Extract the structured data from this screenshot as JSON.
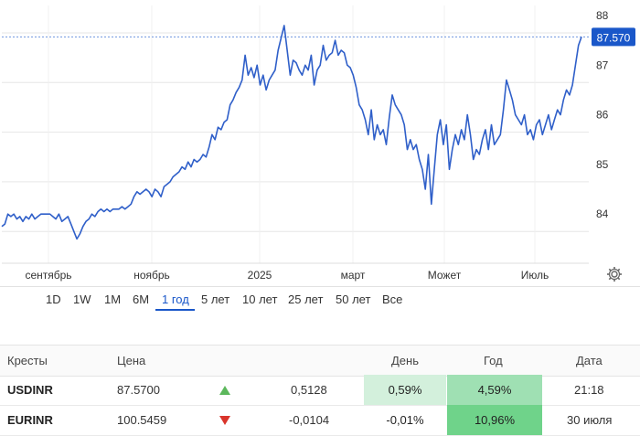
{
  "chart_data": {
    "type": "line",
    "x_labels": [
      "сентябрь",
      "ноябрь",
      "2025",
      "март",
      "Может",
      "Июль"
    ],
    "y_ticks": [
      84,
      85,
      86,
      87,
      88
    ],
    "ylim": [
      83.2,
      88.1
    ],
    "current_value": 87.57,
    "current_label": "87.570",
    "series": [
      {
        "values": [
          83.75,
          83.8,
          84.0,
          83.95,
          84.0,
          83.9,
          83.95,
          83.85,
          83.95,
          83.9,
          84.0,
          83.9,
          83.95,
          84.0,
          84.0,
          84.0,
          84.0,
          83.95,
          83.9,
          84.0,
          83.85,
          83.9,
          83.95,
          83.8,
          83.65,
          83.5,
          83.6,
          83.75,
          83.85,
          83.9,
          84.0,
          83.95,
          84.05,
          84.1,
          84.05,
          84.1,
          84.05,
          84.1,
          84.1,
          84.1,
          84.15,
          84.1,
          84.15,
          84.2,
          84.35,
          84.45,
          84.4,
          84.45,
          84.5,
          84.45,
          84.35,
          84.5,
          84.45,
          84.35,
          84.55,
          84.6,
          84.65,
          84.75,
          84.8,
          84.85,
          84.95,
          84.9,
          85.05,
          84.95,
          85.1,
          85.05,
          85.1,
          85.2,
          85.15,
          85.35,
          85.6,
          85.5,
          85.75,
          85.7,
          85.85,
          85.9,
          86.2,
          86.3,
          86.45,
          86.55,
          86.7,
          87.2,
          86.8,
          86.95,
          86.75,
          87.0,
          86.6,
          86.8,
          86.5,
          86.7,
          86.8,
          86.9,
          87.3,
          87.55,
          87.8,
          87.3,
          86.8,
          87.1,
          87.05,
          86.9,
          86.8,
          87.0,
          86.9,
          87.2,
          86.6,
          86.9,
          87.0,
          87.4,
          87.1,
          87.2,
          87.25,
          87.5,
          87.2,
          87.3,
          87.25,
          87.0,
          86.95,
          86.8,
          86.55,
          86.2,
          86.1,
          85.9,
          85.6,
          86.1,
          85.5,
          85.8,
          85.6,
          85.7,
          85.4,
          85.95,
          86.4,
          86.2,
          86.1,
          86.0,
          85.8,
          85.3,
          85.5,
          85.3,
          85.4,
          85.1,
          84.9,
          84.5,
          85.2,
          84.2,
          84.9,
          85.6,
          85.9,
          85.4,
          85.8,
          84.9,
          85.3,
          85.6,
          85.4,
          85.7,
          85.5,
          86.0,
          85.6,
          85.1,
          85.3,
          85.2,
          85.5,
          85.7,
          85.3,
          85.8,
          85.4,
          85.5,
          85.6,
          86.1,
          86.7,
          86.5,
          86.3,
          86.0,
          85.9,
          85.8,
          86.0,
          85.6,
          85.7,
          85.5,
          85.8,
          85.9,
          85.6,
          85.8,
          86.0,
          85.7,
          85.9,
          86.1,
          86.0,
          86.3,
          86.5,
          86.4,
          86.6,
          87.0,
          87.4,
          87.57
        ]
      }
    ]
  },
  "range_buttons": [
    "1D",
    "1W",
    "1M",
    "6M",
    "1 год",
    "5 лет",
    "10 лет",
    "25 лет",
    "50 лет",
    "Все"
  ],
  "active_range": "1 год",
  "table": {
    "headers": [
      "Кресты",
      "Цена",
      "День",
      "Год",
      "Дата"
    ],
    "rows": [
      {
        "symbol": "USDINR",
        "price": "87.5700",
        "direction": "up",
        "change": "0,5128",
        "day": "0,59%",
        "year": "4,59%",
        "date": "21:18"
      },
      {
        "symbol": "EURINR",
        "price": "100.5459",
        "direction": "down",
        "change": "-0,0104",
        "day": "-0,01%",
        "year": "10,96%",
        "date": "30 июля"
      }
    ]
  },
  "colors": {
    "line": "#2f5fc9",
    "accent": "#1a57c9",
    "up": "#5cb85c",
    "down": "#d9342b",
    "grid": "#e6e6e6"
  }
}
